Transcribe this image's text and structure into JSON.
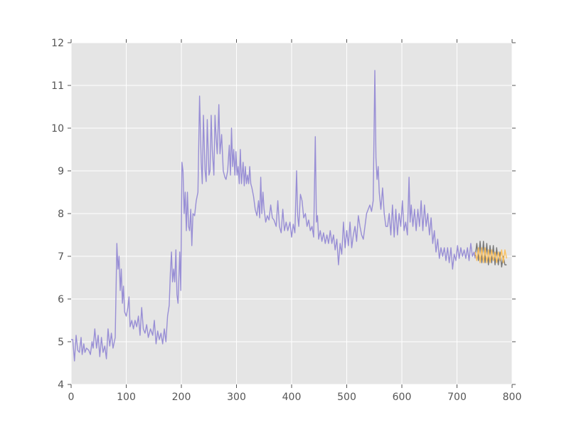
{
  "chart_data": {
    "type": "line",
    "title": "",
    "xlabel": "",
    "ylabel": "",
    "xlim": [
      0,
      800
    ],
    "ylim": [
      4,
      12
    ],
    "xticks": [
      "0",
      "100",
      "200",
      "300",
      "400",
      "500",
      "600",
      "700",
      "800"
    ],
    "yticks": [
      "4",
      "5",
      "6",
      "7",
      "8",
      "9",
      "10",
      "11",
      "12"
    ],
    "grid": true,
    "style": "ggplot",
    "colors": {
      "background": "#E5E5E5",
      "grid": "#FFFFFF",
      "tick_label": "#555555"
    },
    "series": [
      {
        "color": "#988ED5",
        "x": [
          0,
          3,
          6,
          9,
          12,
          15,
          18,
          20,
          23,
          25,
          28,
          32,
          35,
          38,
          40,
          43,
          46,
          49,
          52,
          55,
          58,
          61,
          64,
          67,
          70,
          73,
          76,
          80,
          83,
          85,
          87,
          89,
          91,
          93,
          95,
          97,
          100,
          103,
          105,
          107,
          110,
          113,
          116,
          119,
          122,
          125,
          128,
          131,
          134,
          137,
          140,
          144,
          148,
          151,
          154,
          157,
          160,
          163,
          166,
          169,
          172,
          175,
          178,
          180,
          182,
          184,
          186,
          188,
          190,
          192,
          194,
          197,
          199,
          201,
          203,
          205,
          207,
          209,
          211,
          213,
          215,
          217,
          219,
          221,
          224,
          227,
          230,
          233,
          236,
          238,
          240,
          243,
          245,
          247,
          250,
          252,
          254,
          256,
          259,
          261,
          263,
          265,
          268,
          270,
          273,
          276,
          279,
          281,
          284,
          287,
          289,
          291,
          293,
          295,
          297,
          299,
          301,
          303,
          305,
          307,
          309,
          312,
          314,
          316,
          318,
          320,
          322,
          324,
          326,
          328,
          331,
          334,
          337,
          340,
          342,
          344,
          346,
          348,
          350,
          353,
          356,
          359,
          362,
          365,
          368,
          372,
          375,
          378,
          381,
          384,
          387,
          390,
          393,
          397,
          400,
          403,
          406,
          409,
          411,
          413,
          416,
          419,
          422,
          425,
          428,
          431,
          434,
          437,
          440,
          443,
          445,
          447,
          449,
          452,
          455,
          458,
          461,
          464,
          467,
          470,
          473,
          476,
          479,
          482,
          485,
          488,
          491,
          494,
          497,
          500,
          503,
          506,
          509,
          512,
          515,
          518,
          521,
          524,
          527,
          530,
          533,
          536,
          539,
          542,
          545,
          548,
          551,
          553,
          555,
          557,
          559,
          562,
          565,
          568,
          571,
          574,
          577,
          580,
          583,
          586,
          589,
          592,
          595,
          598,
          601,
          604,
          607,
          610,
          613,
          615,
          617,
          620,
          623,
          626,
          629,
          632,
          635,
          638,
          641,
          644,
          647,
          650,
          653,
          656,
          659,
          662,
          665,
          668,
          671,
          674,
          677,
          680,
          683,
          686,
          689,
          692,
          695,
          698,
          701,
          704,
          707,
          710,
          713,
          716,
          719,
          722,
          725,
          728,
          731,
          733
        ],
        "y": [
          5.05,
          5.05,
          4.55,
          5.15,
          4.8,
          4.75,
          5.1,
          4.7,
          4.95,
          4.75,
          4.85,
          4.8,
          4.7,
          5.0,
          4.85,
          5.3,
          4.85,
          5.15,
          4.65,
          5.1,
          4.75,
          4.9,
          4.6,
          5.3,
          4.9,
          5.2,
          4.85,
          5.1,
          7.3,
          6.7,
          7.0,
          6.2,
          6.7,
          5.9,
          6.3,
          5.7,
          5.6,
          5.8,
          6.05,
          5.35,
          5.5,
          5.3,
          5.5,
          5.35,
          5.6,
          5.15,
          5.8,
          5.3,
          5.2,
          5.4,
          5.1,
          5.3,
          5.15,
          5.5,
          4.95,
          5.25,
          5.05,
          5.2,
          4.95,
          5.3,
          5.0,
          5.6,
          5.85,
          6.6,
          7.1,
          6.4,
          6.7,
          6.4,
          7.15,
          6.1,
          5.9,
          7.1,
          6.2,
          9.2,
          9.0,
          8.0,
          8.5,
          7.6,
          8.5,
          7.7,
          7.6,
          8.1,
          7.25,
          8.0,
          7.95,
          8.3,
          8.5,
          10.75,
          9.2,
          8.7,
          10.3,
          9.0,
          8.75,
          10.2,
          8.9,
          9.0,
          10.3,
          9.5,
          8.9,
          10.3,
          9.8,
          9.4,
          10.55,
          9.4,
          9.85,
          9.0,
          8.85,
          8.8,
          9.0,
          9.6,
          8.9,
          10.0,
          9.1,
          9.5,
          8.9,
          9.45,
          8.9,
          9.1,
          8.7,
          9.5,
          8.7,
          9.2,
          8.65,
          9.1,
          8.7,
          8.9,
          8.7,
          9.1,
          8.7,
          8.6,
          8.4,
          8.1,
          7.95,
          8.3,
          7.9,
          8.85,
          8.0,
          8.5,
          8.1,
          7.8,
          7.95,
          7.85,
          8.2,
          7.9,
          7.85,
          7.7,
          8.3,
          7.7,
          7.55,
          8.1,
          7.6,
          7.8,
          7.6,
          7.8,
          7.45,
          7.75,
          7.55,
          9.0,
          7.95,
          7.7,
          8.45,
          8.3,
          7.9,
          8.0,
          7.7,
          7.85,
          7.6,
          7.7,
          7.45,
          9.8,
          7.8,
          7.95,
          7.4,
          7.6,
          7.35,
          7.55,
          7.3,
          7.5,
          7.3,
          7.6,
          7.3,
          7.5,
          7.15,
          7.4,
          6.8,
          7.3,
          7.05,
          7.8,
          7.2,
          7.6,
          7.25,
          7.8,
          7.2,
          7.5,
          7.7,
          7.35,
          7.95,
          7.7,
          7.5,
          7.4,
          7.7,
          8.0,
          8.1,
          8.2,
          8.05,
          8.3,
          11.35,
          9.3,
          8.8,
          9.1,
          8.5,
          8.1,
          8.6,
          8.0,
          7.7,
          7.7,
          8.0,
          7.5,
          8.2,
          7.45,
          8.1,
          7.5,
          8.0,
          7.7,
          8.3,
          7.6,
          7.8,
          7.5,
          8.85,
          7.8,
          8.2,
          7.7,
          8.1,
          7.6,
          8.1,
          7.7,
          8.3,
          7.6,
          8.2,
          7.7,
          8.0,
          7.5,
          7.9,
          7.3,
          7.6,
          7.1,
          7.4,
          6.95,
          7.2,
          7.0,
          7.2,
          6.9,
          7.2,
          6.85,
          7.2,
          6.7,
          7.05,
          6.9,
          7.25,
          6.95,
          7.2,
          7.0,
          7.15,
          6.95,
          7.2,
          6.9,
          7.3,
          7.0,
          7.1,
          6.95
        ]
      },
      {
        "color": "#777777",
        "x": [
          733,
          736,
          739,
          742,
          745,
          748,
          751,
          754,
          757,
          760,
          763,
          766,
          769,
          772,
          775,
          778,
          781,
          784,
          787,
          790
        ],
        "y": [
          7.0,
          7.3,
          6.9,
          7.35,
          6.85,
          7.35,
          6.85,
          7.3,
          6.8,
          7.25,
          6.85,
          7.25,
          6.8,
          7.2,
          6.8,
          7.1,
          6.75,
          7.0,
          6.8,
          6.8
        ]
      },
      {
        "color": "#FBC15E",
        "x": [
          733,
          736,
          739,
          742,
          745,
          748,
          751,
          754,
          757,
          760,
          763,
          766,
          769,
          772,
          775,
          778,
          781,
          784,
          787,
          790
        ],
        "y": [
          7.1,
          6.9,
          7.2,
          6.85,
          7.2,
          6.85,
          7.2,
          6.85,
          7.15,
          6.85,
          7.15,
          6.9,
          7.1,
          6.85,
          7.1,
          6.9,
          7.15,
          6.85,
          7.15,
          6.95
        ]
      }
    ]
  }
}
